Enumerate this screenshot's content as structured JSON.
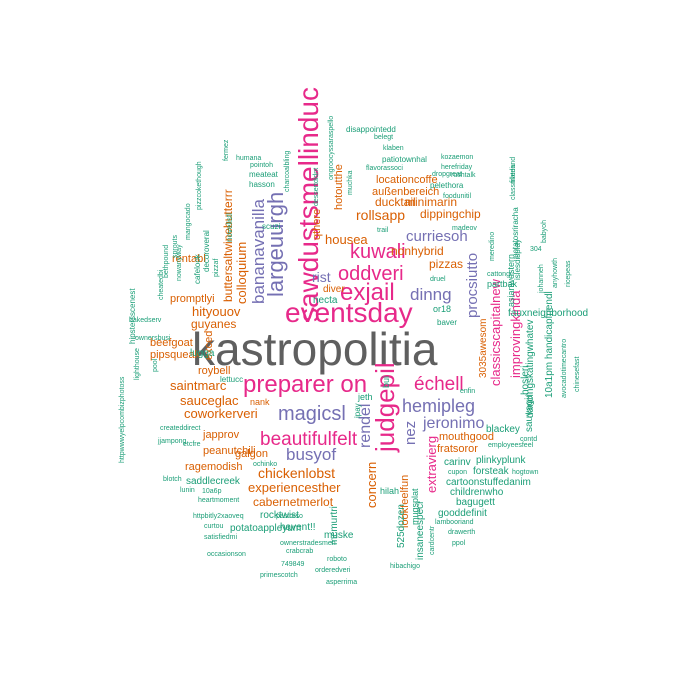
{
  "colors": {
    "gray": "#5f5f5f",
    "teal": "#1b9e77",
    "orange": "#d95f02",
    "purple": "#7570b3",
    "pink": "#e7298a"
  },
  "words": [
    {
      "text": "kastropolitia",
      "color": "gray"
    },
    {
      "text": "eventsday",
      "color": "pink"
    },
    {
      "text": "sawdustsmellinduc",
      "color": "pink"
    },
    {
      "text": "preparer on",
      "color": "pink"
    },
    {
      "text": "judgepil",
      "color": "pink"
    },
    {
      "text": "largeuurgh",
      "color": "purple"
    },
    {
      "text": "exjail",
      "color": "pink"
    },
    {
      "text": "oddveri",
      "color": "pink"
    },
    {
      "text": "kuwali",
      "color": "pink"
    },
    {
      "text": "magicsl",
      "color": "purple"
    },
    {
      "text": "beautifulfelt",
      "color": "pink"
    },
    {
      "text": "busyof",
      "color": "purple"
    },
    {
      "text": "échell",
      "color": "pink"
    },
    {
      "text": "hemipleg",
      "color": "purple"
    },
    {
      "text": "bananavanilla",
      "color": "purple"
    },
    {
      "text": "dinng",
      "color": "purple"
    },
    {
      "text": "jeronimo",
      "color": "purple"
    },
    {
      "text": "rendel",
      "color": "purple"
    },
    {
      "text": "nez",
      "color": "purple"
    },
    {
      "text": "procsiutto",
      "color": "purple"
    },
    {
      "text": "curriesoh",
      "color": "purple"
    },
    {
      "text": "rist",
      "color": "purple"
    },
    {
      "text": "classicscapitalnew",
      "color": "pink"
    },
    {
      "text": "improvingkinda",
      "color": "pink"
    },
    {
      "text": "extravierg",
      "color": "pink"
    },
    {
      "text": "rollsapp",
      "color": "orange"
    },
    {
      "text": "chickenlobst",
      "color": "orange"
    },
    {
      "text": "coworkerveri",
      "color": "orange"
    },
    {
      "text": "colloquium",
      "color": "orange"
    },
    {
      "text": "housea",
      "color": "orange"
    },
    {
      "text": "concern",
      "color": "orange"
    },
    {
      "text": "sauceglac",
      "color": "orange"
    },
    {
      "text": "saintmarc",
      "color": "orange"
    },
    {
      "text": "hityouov",
      "color": "orange"
    },
    {
      "text": "guyanes",
      "color": "orange"
    },
    {
      "text": "experiencesther",
      "color": "orange"
    },
    {
      "text": "cabernetmerlot",
      "color": "orange"
    },
    {
      "text": "pizzas",
      "color": "orange"
    },
    {
      "text": "nonhybrid",
      "color": "orange"
    },
    {
      "text": "dippingchip",
      "color": "orange"
    },
    {
      "text": "ducktail",
      "color": "orange"
    },
    {
      "text": "minimarin",
      "color": "orange"
    },
    {
      "text": "außenbereich",
      "color": "orange"
    },
    {
      "text": "locationcoffe",
      "color": "orange"
    },
    {
      "text": "hotoutthe",
      "color": "orange"
    },
    {
      "text": "qthere",
      "color": "orange"
    },
    {
      "text": "buttersaltwinebutterrr",
      "color": "orange"
    },
    {
      "text": "rentabl",
      "color": "orange"
    },
    {
      "text": "promptlyi",
      "color": "orange"
    },
    {
      "text": "beefgoat",
      "color": "orange"
    },
    {
      "text": "pipsqueak",
      "color": "orange"
    },
    {
      "text": "exced",
      "color": "orange"
    },
    {
      "text": "roybell",
      "color": "orange"
    },
    {
      "text": "japprov",
      "color": "orange"
    },
    {
      "text": "ragemodish",
      "color": "orange"
    },
    {
      "text": "galgon",
      "color": "orange"
    },
    {
      "text": "peanutchili",
      "color": "orange"
    },
    {
      "text": "mouthgood",
      "color": "orange"
    },
    {
      "text": "fratsoror",
      "color": "orange"
    },
    {
      "text": "lookfeelfun",
      "color": "orange"
    },
    {
      "text": "diver",
      "color": "orange"
    },
    {
      "text": "3035awesom",
      "color": "orange"
    },
    {
      "text": "nank",
      "color": "orange"
    },
    {
      "text": "saddlecreek",
      "color": "teal"
    },
    {
      "text": "rocktwist",
      "color": "teal"
    },
    {
      "text": "potatoappleyum",
      "color": "teal"
    },
    {
      "text": "havent!!",
      "color": "teal"
    },
    {
      "text": "mcmurtri",
      "color": "teal"
    },
    {
      "text": "muske",
      "color": "teal"
    },
    {
      "text": "insaneespeci",
      "color": "teal"
    },
    {
      "text": "525dozen",
      "color": "teal"
    },
    {
      "text": "mugsplat",
      "color": "teal"
    },
    {
      "text": "hilah",
      "color": "teal"
    },
    {
      "text": "gooddefinit",
      "color": "teal"
    },
    {
      "text": "bagugett",
      "color": "teal"
    },
    {
      "text": "cartoonstuffedanim",
      "color": "teal"
    },
    {
      "text": "childrenwho",
      "color": "teal"
    },
    {
      "text": "forsteak",
      "color": "teal"
    },
    {
      "text": "carinv",
      "color": "teal"
    },
    {
      "text": "plinkyplunk",
      "color": "teal"
    },
    {
      "text": "blackey",
      "color": "teal"
    },
    {
      "text": "sauvagin",
      "color": "teal"
    },
    {
      "text": "dancingskatingwhatev",
      "color": "teal"
    },
    {
      "text": "hosleri",
      "color": "teal"
    },
    {
      "text": "fauxneighborhood",
      "color": "teal"
    },
    {
      "text": "10a1pm handicapfriendl",
      "color": "teal"
    },
    {
      "text": "partbak",
      "color": "teal"
    },
    {
      "text": "asianwestern",
      "color": "teal"
    },
    {
      "text": "or18",
      "color": "teal"
    },
    {
      "text": "baver",
      "color": "teal"
    },
    {
      "text": "necta",
      "color": "teal"
    },
    {
      "text": "lugga",
      "color": "teal"
    },
    {
      "text": "jeth",
      "color": "teal"
    },
    {
      "text": "ipay",
      "color": "teal"
    },
    {
      "text": "bui",
      "color": "teal"
    },
    {
      "text": "lettucc",
      "color": "teal"
    },
    {
      "text": "hipstersscenest",
      "color": "teal"
    },
    {
      "text": "cafelook",
      "color": "teal"
    },
    {
      "text": "decoroveral",
      "color": "teal"
    },
    {
      "text": "novelistl",
      "color": "teal"
    },
    {
      "text": "scuzi",
      "color": "teal"
    },
    {
      "text": "hasson",
      "color": "teal"
    },
    {
      "text": "meateat",
      "color": "teal"
    },
    {
      "text": "pointoh",
      "color": "teal"
    },
    {
      "text": "humana",
      "color": "teal"
    },
    {
      "text": "patiotownhal",
      "color": "teal"
    },
    {
      "text": "klaben",
      "color": "teal"
    },
    {
      "text": "flavorassoci",
      "color": "teal"
    },
    {
      "text": "belegt",
      "color": "teal"
    },
    {
      "text": "disappointedd",
      "color": "teal"
    },
    {
      "text": "kozaemon",
      "color": "teal"
    },
    {
      "text": "herefriday",
      "color": "teal"
    },
    {
      "text": "rushtalk",
      "color": "teal"
    },
    {
      "text": "dropgreat",
      "color": "teal"
    },
    {
      "text": "foodunitil",
      "color": "teal"
    },
    {
      "text": "pelethora",
      "color": "teal"
    },
    {
      "text": "madeov",
      "color": "teal"
    },
    {
      "text": "cattongu",
      "color": "teal"
    },
    {
      "text": "potatosriracha",
      "color": "teal"
    },
    {
      "text": "islesdisplay",
      "color": "teal"
    },
    {
      "text": "304",
      "color": "teal"
    },
    {
      "text": "employeesfeel",
      "color": "teal"
    },
    {
      "text": "contd",
      "color": "teal"
    },
    {
      "text": "hogtown",
      "color": "teal"
    },
    {
      "text": "enfin",
      "color": "teal"
    },
    {
      "text": "cupon",
      "color": "teal"
    },
    {
      "text": "lambooriand",
      "color": "teal"
    },
    {
      "text": "drawerth",
      "color": "teal"
    },
    {
      "text": "ppol",
      "color": "teal"
    },
    {
      "text": "hibachigo",
      "color": "teal"
    },
    {
      "text": "orderedveri",
      "color": "teal"
    },
    {
      "text": "roboto",
      "color": "teal"
    },
    {
      "text": "asperrima",
      "color": "teal"
    },
    {
      "text": "crabcrab",
      "color": "teal"
    },
    {
      "text": "ownerstradesmen",
      "color": "teal"
    },
    {
      "text": "749849",
      "color": "teal"
    },
    {
      "text": "primescotch",
      "color": "teal"
    },
    {
      "text": "occasionson",
      "color": "teal"
    },
    {
      "text": "satisfiedmi",
      "color": "teal"
    },
    {
      "text": "curtou",
      "color": "teal"
    },
    {
      "text": "httpbitly2xaoveq",
      "color": "teal"
    },
    {
      "text": "heartmoment",
      "color": "teal"
    },
    {
      "text": "10a6p",
      "color": "teal"
    },
    {
      "text": "lunin",
      "color": "teal"
    },
    {
      "text": "blotch",
      "color": "teal"
    },
    {
      "text": "ochinko",
      "color": "teal"
    },
    {
      "text": "jjampong",
      "color": "teal"
    },
    {
      "text": "createddirect",
      "color": "teal"
    },
    {
      "text": "pastorso",
      "color": "teal"
    },
    {
      "text": "httpwwwyelpcombizphotoss",
      "color": "teal"
    },
    {
      "text": "ownersbusi",
      "color": "teal"
    },
    {
      "text": "cheatedbi",
      "color": "teal"
    },
    {
      "text": "bakedserv",
      "color": "teal"
    },
    {
      "text": "mangocado",
      "color": "teal"
    },
    {
      "text": "pizzcokethough",
      "color": "teal"
    },
    {
      "text": "sprouts",
      "color": "teal"
    },
    {
      "text": "bethpound",
      "color": "teal"
    },
    {
      "text": "nowanyway",
      "color": "teal"
    },
    {
      "text": "ongroocyssaraspello",
      "color": "teal"
    },
    {
      "text": "charcoalbling",
      "color": "teal"
    },
    {
      "text": "dessertdidnt",
      "color": "teal"
    },
    {
      "text": "muchka",
      "color": "teal"
    },
    {
      "text": "lighthouse",
      "color": "teal"
    },
    {
      "text": "classmateand",
      "color": "teal"
    },
    {
      "text": "fillediu",
      "color": "teal"
    },
    {
      "text": "johanneh",
      "color": "teal"
    },
    {
      "text": "ricepeas",
      "color": "teal"
    },
    {
      "text": "anyhowth",
      "color": "teal"
    },
    {
      "text": "avocadotimecantro",
      "color": "teal"
    },
    {
      "text": "chinesefast",
      "color": "teal"
    },
    {
      "text": "babyoh",
      "color": "teal"
    },
    {
      "text": "trail",
      "color": "teal"
    },
    {
      "text": "druel",
      "color": "teal"
    },
    {
      "text": "fermez",
      "color": "teal"
    },
    {
      "text": "pool",
      "color": "teal"
    },
    {
      "text": "pizzaf",
      "color": "teal"
    },
    {
      "text": "etcfre",
      "color": "teal"
    },
    {
      "text": "meredino",
      "color": "teal"
    },
    {
      "text": "cardcentr",
      "color": "teal"
    }
  ]
}
